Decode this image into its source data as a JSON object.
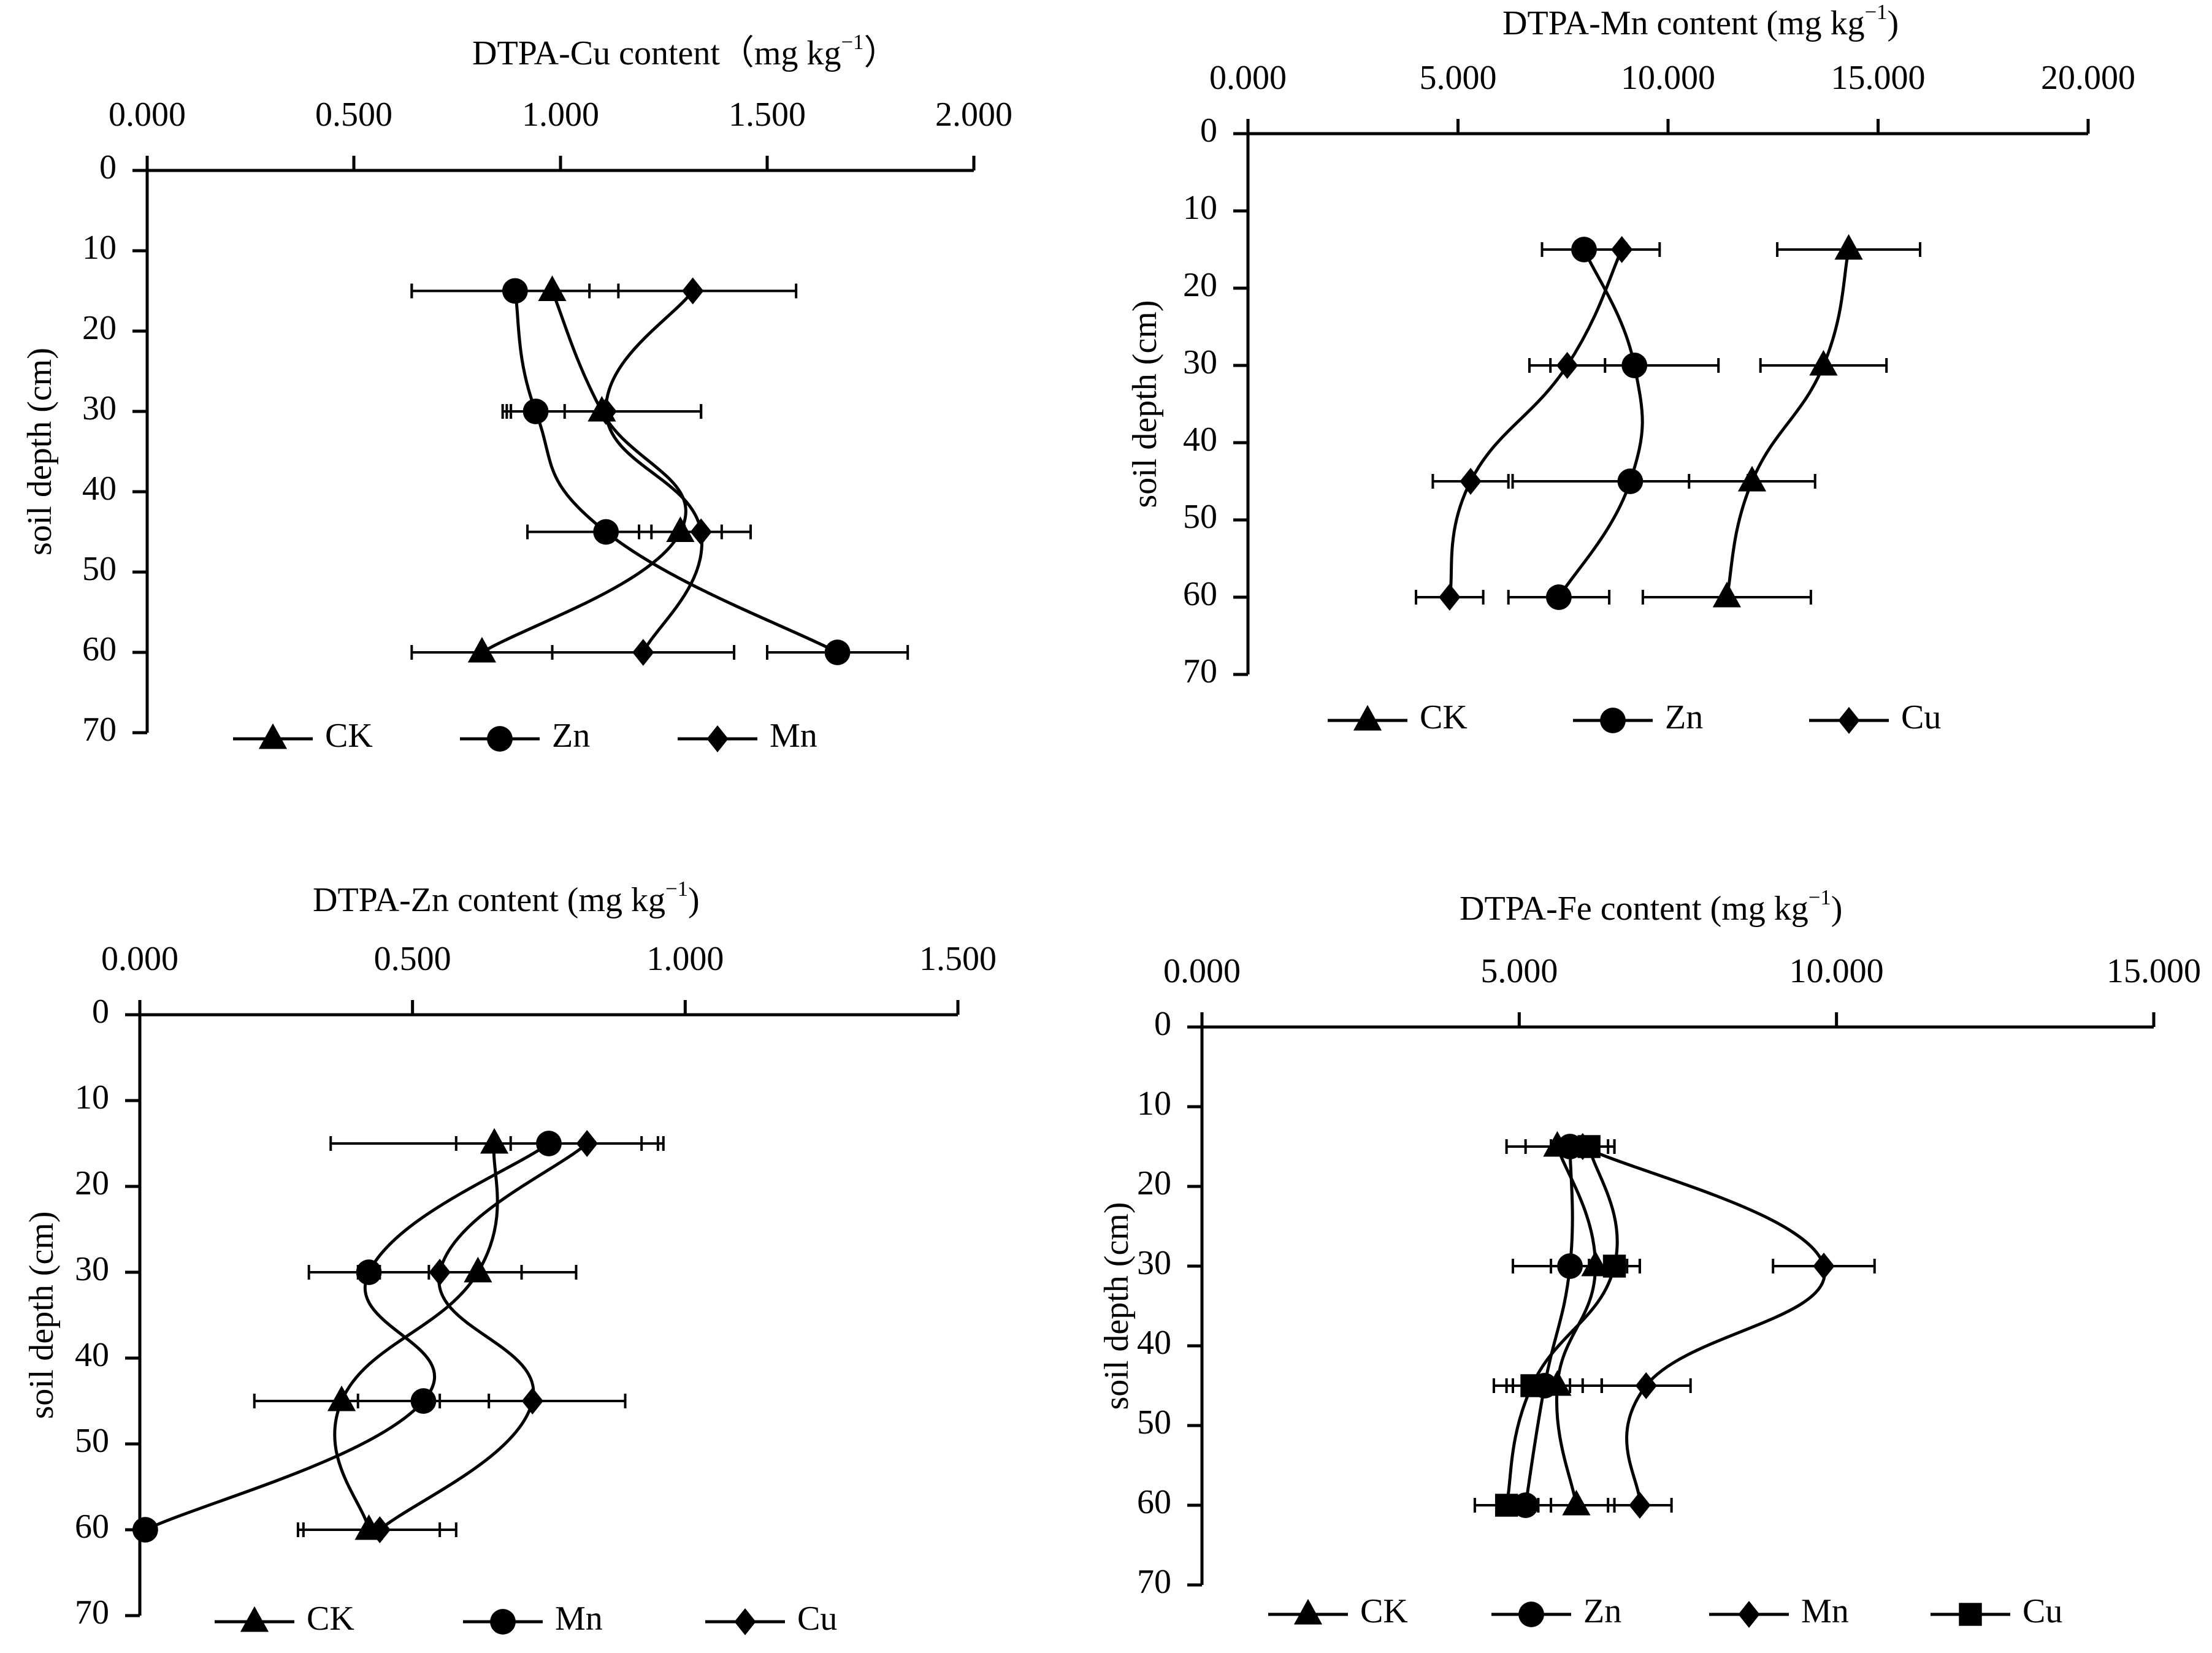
{
  "chart_data": [
    {
      "type": "line",
      "panel": "top-left",
      "title": "DTPA-Cu content（mg kg⁻¹）",
      "xlabel": "DTPA-Cu content（mg kg⁻¹）",
      "ylabel": "soil depth (cm)",
      "xlim": [
        0,
        2
      ],
      "ylim": [
        0,
        70
      ],
      "x_axis_position": "top",
      "x_ticks": [
        "0.000",
        "0.500",
        "1.000",
        "1.500",
        "2.000"
      ],
      "x_tick_values": [
        0,
        0.5,
        1,
        1.5,
        2
      ],
      "y_ticks": [
        "0",
        "10",
        "20",
        "30",
        "40",
        "50",
        "60",
        "70"
      ],
      "y_tick_values": [
        0,
        10,
        20,
        30,
        40,
        50,
        60,
        70
      ],
      "depths": [
        15,
        30,
        45,
        60
      ],
      "series": [
        {
          "name": "CK",
          "marker": "triangle",
          "values": [
            0.98,
            1.1,
            1.29,
            0.81
          ],
          "errors": [
            0.34,
            0.24,
            0.1,
            0.17
          ]
        },
        {
          "name": "Zn",
          "marker": "circle",
          "values": [
            0.89,
            0.94,
            1.11,
            1.67
          ],
          "errors": [
            0.25,
            0.07,
            0.19,
            0.17
          ]
        },
        {
          "name": "Mn",
          "marker": "diamond",
          "values": [
            1.32,
            1.11,
            1.34,
            1.2
          ],
          "errors": [
            0.25,
            0.23,
            0.12,
            0.22
          ]
        }
      ],
      "legend": [
        "CK",
        "Zn",
        "Mn"
      ],
      "legend_position": "bottom"
    },
    {
      "type": "line",
      "panel": "top-right",
      "title": "DTPA-Mn content (mg kg⁻¹)",
      "xlabel": "DTPA-Mn content (mg kg⁻¹)",
      "ylabel": "soil depth (cm)",
      "xlim": [
        0,
        20
      ],
      "ylim": [
        0,
        70
      ],
      "x_axis_position": "top",
      "x_ticks": [
        "0.000",
        "5.000",
        "10.000",
        "15.000",
        "20.000"
      ],
      "x_tick_values": [
        0,
        5,
        10,
        15,
        20
      ],
      "y_ticks": [
        "0",
        "10",
        "20",
        "30",
        "40",
        "50",
        "60",
        "70"
      ],
      "y_tick_values": [
        0,
        10,
        20,
        30,
        40,
        50,
        60,
        70
      ],
      "depths": [
        15,
        30,
        45,
        60
      ],
      "series": [
        {
          "name": "CK",
          "marker": "triangle",
          "values": [
            14.3,
            13.7,
            12.0,
            11.4
          ],
          "errors": [
            1.7,
            1.5,
            1.5,
            2.0
          ]
        },
        {
          "name": "Zn",
          "marker": "circle",
          "values": [
            8.0,
            9.2,
            9.1,
            7.4
          ],
          "errors": [
            1.0,
            2.0,
            2.8,
            1.2
          ]
        },
        {
          "name": "Cu",
          "marker": "diamond",
          "values": [
            8.9,
            7.6,
            5.3,
            4.8
          ],
          "errors": [
            0.9,
            0.9,
            0.9,
            0.8
          ]
        }
      ],
      "legend": [
        "CK",
        "Zn",
        "Cu"
      ],
      "legend_position": "bottom"
    },
    {
      "type": "line",
      "panel": "bottom-left",
      "title": "DTPA-Zn content (mg kg⁻¹)",
      "xlabel": "DTPA-Zn content (mg kg⁻¹)",
      "ylabel": "soil depth (cm)",
      "xlim": [
        0,
        1.5
      ],
      "ylim": [
        0,
        70
      ],
      "x_axis_position": "top",
      "x_ticks": [
        "0.000",
        "0.500",
        "1.000",
        "1.500"
      ],
      "x_tick_values": [
        0,
        0.5,
        1,
        1.5
      ],
      "y_ticks": [
        "0",
        "10",
        "20",
        "30",
        "40",
        "50",
        "60",
        "70"
      ],
      "y_tick_values": [
        0,
        10,
        20,
        30,
        40,
        50,
        60,
        70
      ],
      "depths": [
        15,
        30,
        45,
        60
      ],
      "series": [
        {
          "name": "CK",
          "marker": "triangle",
          "values": [
            0.65,
            0.62,
            0.37,
            0.42
          ],
          "errors": [
            0.3,
            0.18,
            0.16,
            0.13
          ]
        },
        {
          "name": "Mn",
          "marker": "circle",
          "values": [
            0.75,
            0.42,
            0.52,
            0.01
          ],
          "errors": [
            0.17,
            0.11,
            0.12,
            0.0
          ]
        },
        {
          "name": "Cu",
          "marker": "diamond",
          "values": [
            0.82,
            0.55,
            0.72,
            0.44
          ],
          "errors": [
            0.14,
            0.15,
            0.17,
            0.14
          ]
        }
      ],
      "legend": [
        "CK",
        "Mn",
        "Cu"
      ],
      "legend_position": "bottom"
    },
    {
      "type": "line",
      "panel": "bottom-right",
      "title": "DTPA-Fe content (mg kg⁻¹)",
      "xlabel": "DTPA-Fe content (mg kg⁻¹)",
      "ylabel": "soil depth (cm)",
      "xlim": [
        0,
        15
      ],
      "ylim": [
        0,
        70
      ],
      "x_axis_position": "top",
      "x_ticks": [
        "0.000",
        "5.000",
        "10.000",
        "15.000"
      ],
      "x_tick_values": [
        0,
        5,
        10,
        15
      ],
      "y_ticks": [
        "0",
        "10",
        "20",
        "30",
        "40",
        "50",
        "60",
        "70"
      ],
      "y_tick_values": [
        0,
        10,
        20,
        30,
        40,
        50,
        60,
        70
      ],
      "depths": [
        15,
        30,
        45,
        60
      ],
      "series": [
        {
          "name": "CK",
          "marker": "triangle",
          "values": [
            5.6,
            6.2,
            5.6,
            5.9
          ],
          "errors": [
            0.8,
            0.7,
            0.7,
            0.6
          ]
        },
        {
          "name": "Zn",
          "marker": "circle",
          "values": [
            5.8,
            5.8,
            5.4,
            5.1
          ],
          "errors": [
            0.7,
            0.9,
            0.6,
            0.4
          ]
        },
        {
          "name": "Mn",
          "marker": "diamond",
          "values": [
            6.0,
            9.8,
            7.0,
            6.9
          ],
          "errors": [
            0.5,
            0.8,
            0.7,
            0.5
          ]
        },
        {
          "name": "Cu",
          "marker": "square",
          "values": [
            6.1,
            6.5,
            5.2,
            4.8
          ],
          "errors": [
            0.4,
            0.4,
            0.6,
            0.5
          ]
        }
      ],
      "legend": [
        "CK",
        "Zn",
        "Mn",
        "Cu"
      ],
      "legend_position": "bottom"
    }
  ]
}
